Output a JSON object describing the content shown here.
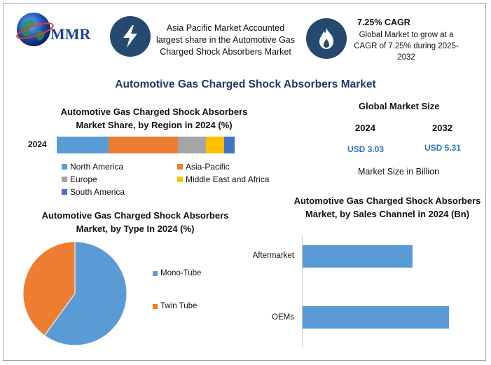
{
  "brand": {
    "logo_text": "MMR"
  },
  "header": {
    "region_fact": "Asia Pacific Market Accounted largest share in the Automotive Gas Charged Shock Absorbers Market",
    "cagr_title": "7.25% CAGR",
    "cagr_text": "Global Market to grow at a CAGR of 7.25% during 2025-2032",
    "icons": [
      "lightning-icon",
      "flame-icon"
    ]
  },
  "main_title": "Automotive Gas Charged Shock Absorbers Market",
  "market_size": {
    "title": "Global Market Size",
    "year1": "2024",
    "year2": "2032",
    "value1": "USD 3.03",
    "value2": "USD 5.31",
    "unit_note": "Market Size in Billion"
  },
  "colors": {
    "north_america": "#5b9bd5",
    "asia_pacific": "#ed7d31",
    "europe": "#a5a5a5",
    "mea": "#ffc000",
    "south_america": "#4472c4",
    "channel_bar": "#5b9bd5"
  },
  "chart_data": [
    {
      "type": "bar",
      "orientation": "horizontal-stacked",
      "title": "Automotive Gas Charged Shock Absorbers Market Share, by Region in 2024 (%)",
      "categories": [
        "2024"
      ],
      "series": [
        {
          "name": "North America",
          "values": [
            29
          ]
        },
        {
          "name": "Asia-Pacific",
          "values": [
            39
          ]
        },
        {
          "name": "Europe",
          "values": [
            16
          ]
        },
        {
          "name": "Middle East and Africa",
          "values": [
            10
          ]
        },
        {
          "name": "South America",
          "values": [
            6
          ]
        }
      ],
      "legend": "bottom"
    },
    {
      "type": "pie",
      "title": "Automotive Gas Charged Shock Absorbers Market, by Type In 2024 (%)",
      "labels": [
        "Mono-Tube",
        "Twin Tube"
      ],
      "values": [
        60,
        40
      ],
      "legend": "right"
    },
    {
      "type": "bar",
      "orientation": "horizontal",
      "title": "Automotive Gas Charged Shock Absorbers Market, by Sales Channel in 2024 (Bn)",
      "categories": [
        "Aftermarket",
        "OEMs"
      ],
      "values": [
        1.3,
        1.73
      ],
      "xlim": [
        0,
        1.9
      ]
    }
  ]
}
